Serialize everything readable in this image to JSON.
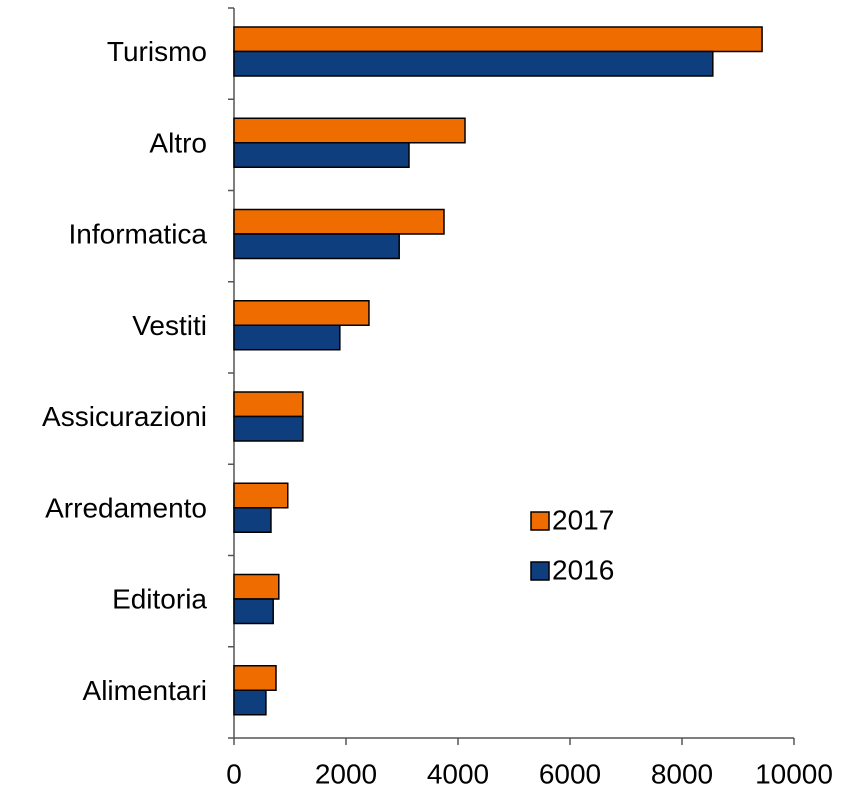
{
  "chart_data": {
    "type": "barh",
    "categories": [
      "Turismo",
      "Altro",
      "Informatica",
      "Vestiti",
      "Assicurazioni",
      "Arredamento",
      "Editoria",
      "Alimentari"
    ],
    "series": [
      {
        "name": "2017",
        "color": "#ef6c00",
        "values": [
          9430,
          4125,
          3750,
          2410,
          1230,
          960,
          800,
          750
        ]
      },
      {
        "name": "2016",
        "color": "#0e3e7e",
        "values": [
          8550,
          3125,
          2950,
          1890,
          1230,
          660,
          700,
          570
        ]
      }
    ],
    "xlim": [
      0,
      10000
    ],
    "xticks": [
      0,
      2000,
      4000,
      6000,
      8000,
      10000
    ],
    "grid": false,
    "legend": "lower right"
  }
}
